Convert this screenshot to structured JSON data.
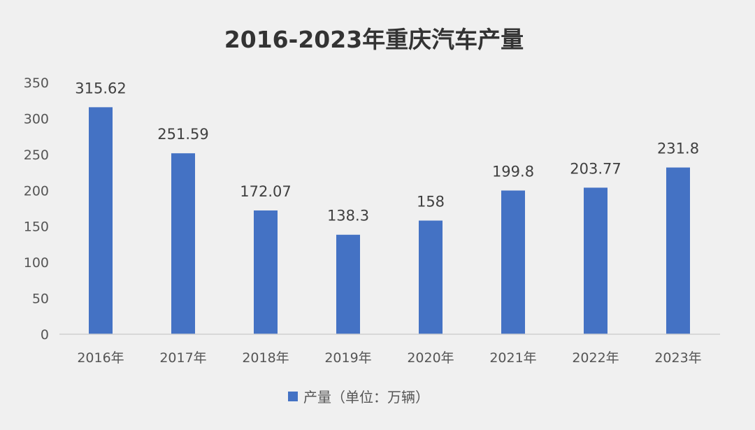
{
  "chart_data": {
    "type": "bar",
    "title": "2016-2023年重庆汽车产量",
    "categories": [
      "2016年",
      "2017年",
      "2018年",
      "2019年",
      "2020年",
      "2021年",
      "2022年",
      "2023年"
    ],
    "series": [
      {
        "name": "产量（单位：万辆）",
        "values": [
          315.62,
          251.59,
          172.07,
          138.3,
          158,
          199.8,
          203.77,
          231.8
        ]
      }
    ],
    "data_labels": [
      "315.62",
      "251.59",
      "172.07",
      "138.3",
      "158",
      "199.8",
      "203.77",
      "231.8"
    ],
    "yticks": [
      0,
      50,
      100,
      150,
      200,
      250,
      300,
      350
    ],
    "ylim": [
      0,
      350
    ],
    "xlabel": "",
    "ylabel": "",
    "grid": false,
    "legend_position": "bottom",
    "bar_color": "#4472c4"
  }
}
